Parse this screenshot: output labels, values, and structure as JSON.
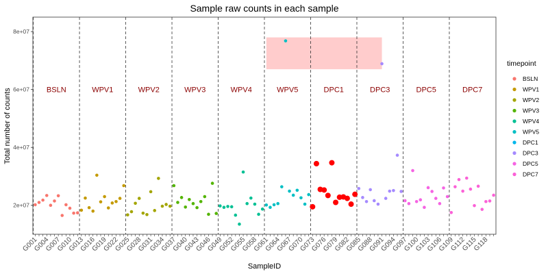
{
  "chart_data": {
    "type": "scatter",
    "title": "Sample raw counts in each sample",
    "xlabel": "SampleID",
    "ylabel": "Total number of counts",
    "ylim": [
      10000000,
      85000000
    ],
    "yticks": [
      20000000,
      40000000,
      60000000,
      80000000
    ],
    "ytick_labels": [
      "2e+07",
      "4e+07",
      "6e+07",
      "8e+07"
    ],
    "x_tick_labels": [
      "G001",
      "G004",
      "G007",
      "G010",
      "G013",
      "G016",
      "G019",
      "G022",
      "G025",
      "G028",
      "G031",
      "G034",
      "G037",
      "G040",
      "G043",
      "G046",
      "G049",
      "G052",
      "G055",
      "G058",
      "G061",
      "G064",
      "G067",
      "G070",
      "G073",
      "G076",
      "G079",
      "G082",
      "G085",
      "G088",
      "G091",
      "G094",
      "G097",
      "G100",
      "G103",
      "G106",
      "G109",
      "G112",
      "G115",
      "G118"
    ],
    "legend": {
      "title": "timepoint",
      "placement": "right",
      "entries": [
        {
          "name": "BSLN",
          "color": "#F8766D"
        },
        {
          "name": "WPV1",
          "color": "#C49A00"
        },
        {
          "name": "WPV2",
          "color": "#A3A500"
        },
        {
          "name": "WPV3",
          "color": "#53B400"
        },
        {
          "name": "WPV4",
          "color": "#00C094"
        },
        {
          "name": "WPV5",
          "color": "#00BFC4"
        },
        {
          "name": "DPC1",
          "color": "#00B6EB"
        },
        {
          "name": "DPC3",
          "color": "#A58AFF"
        },
        {
          "name": "DPC5",
          "color": "#F564E3"
        },
        {
          "name": "DPC7",
          "color": "#FB61D7"
        }
      ]
    },
    "phase_labels": [
      "BSLN",
      "WPV1",
      "WPV2",
      "WPV3",
      "WPV4",
      "WPV5",
      "DPC1",
      "DPC3",
      "DPC5",
      "DPC7"
    ],
    "phase_boundaries": [
      0.5,
      12.5,
      24.5,
      36.5,
      48.5,
      60.5,
      72.5,
      84.5,
      96.5,
      108.5
    ],
    "highlight_region": {
      "x": [
        61,
        91
      ],
      "y": [
        67000000,
        78000000
      ],
      "color": "#FFCCCC"
    },
    "highlight_color": "#FF0000",
    "highlight_x": [
      73,
      74,
      75,
      76,
      77,
      78,
      79,
      80,
      81,
      82,
      83,
      84
    ],
    "grid": false,
    "series": [
      {
        "name": "BSLN",
        "color": "#F8766D",
        "x": [
          1,
          2,
          3,
          4,
          5,
          6,
          7,
          8,
          9,
          10,
          11,
          12
        ],
        "y": [
          20200000,
          21000000,
          21800000,
          23400000,
          20000000,
          21500000,
          23300000,
          16500000,
          20200000,
          19000000,
          17300000,
          17400000
        ]
      },
      {
        "name": "WPV1",
        "color": "#C49A00",
        "x": [
          13,
          14,
          15,
          16,
          17,
          18,
          19,
          20,
          21,
          22,
          23,
          24
        ],
        "y": [
          18300000,
          22500000,
          19200000,
          18000000,
          30400000,
          21200000,
          23000000,
          19100000,
          20800000,
          21300000,
          22400000,
          26800000
        ]
      },
      {
        "name": "WPV2",
        "color": "#A3A500",
        "x": [
          25,
          26,
          27,
          28,
          29,
          30,
          31,
          32,
          33,
          34,
          35,
          36
        ],
        "y": [
          16700000,
          17800000,
          20700000,
          22400000,
          17300000,
          16800000,
          24700000,
          18200000,
          29300000,
          19700000,
          20300000,
          19700000
        ]
      },
      {
        "name": "WPV3",
        "color": "#53B400",
        "x": [
          37,
          38,
          39,
          40,
          41,
          42,
          43,
          44,
          45,
          46,
          47,
          48
        ],
        "y": [
          26800000,
          21000000,
          22700000,
          19400000,
          22000000,
          20600000,
          19200000,
          21300000,
          23000000,
          16900000,
          27600000,
          17200000
        ]
      },
      {
        "name": "WPV4",
        "color": "#00C094",
        "x": [
          49,
          50,
          51,
          52,
          53,
          54,
          55,
          56,
          57,
          58,
          59,
          60
        ],
        "y": [
          19800000,
          19300000,
          19600000,
          19500000,
          16600000,
          13500000,
          31500000,
          20600000,
          22500000,
          20400000,
          16900000,
          18700000
        ]
      },
      {
        "name": "WPV5",
        "color": "#00BFC4",
        "x": [
          61,
          62,
          63,
          64,
          65,
          66,
          67,
          68,
          69,
          70,
          71,
          72
        ],
        "y": [
          20100000,
          19300000,
          20200000,
          20600000,
          26400000,
          76800000,
          24900000,
          23500000,
          25200000,
          22600000,
          20400000,
          23700000
        ]
      },
      {
        "name": "DPC1",
        "color": "#00B6EB",
        "x": [
          73,
          74,
          75,
          76,
          77,
          78,
          79,
          80,
          81,
          82,
          83,
          84
        ],
        "y": [
          19500000,
          34400000,
          25500000,
          25300000,
          23400000,
          34700000,
          21000000,
          22800000,
          22900000,
          22400000,
          20400000,
          23800000
        ]
      },
      {
        "name": "DPC3",
        "color": "#A58AFF",
        "x": [
          85,
          86,
          87,
          88,
          89,
          90,
          91,
          92,
          93,
          94,
          95,
          96
        ],
        "y": [
          25800000,
          22700000,
          21300000,
          25400000,
          21600000,
          20400000,
          68900000,
          22400000,
          24900000,
          25100000,
          37300000,
          24800000
        ]
      },
      {
        "name": "DPC5",
        "color": "#F564E3",
        "x": [
          97,
          98,
          99,
          100,
          101,
          102,
          103,
          104,
          105,
          106,
          107,
          108
        ],
        "y": [
          21600000,
          20600000,
          32000000,
          21300000,
          21900000,
          19300000,
          26100000,
          24800000,
          22400000,
          20600000,
          26000000,
          23000000
        ]
      },
      {
        "name": "DPC7",
        "color": "#FB61D7",
        "x": [
          109,
          110,
          111,
          112,
          113,
          114,
          115,
          116,
          117,
          118,
          119,
          120
        ],
        "y": [
          17500000,
          26400000,
          28900000,
          24900000,
          29400000,
          25600000,
          19900000,
          26600000,
          18600000,
          21300000,
          21500000,
          23500000
        ]
      }
    ]
  }
}
